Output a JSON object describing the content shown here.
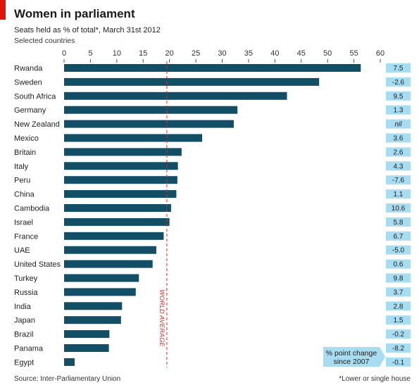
{
  "colors": {
    "brand": "#e3120b",
    "bar": "#124e66",
    "change_box": "#a8dcf0",
    "reference_line": "#d62c2c",
    "tick_mark": "#555555"
  },
  "source": "Source: Inter-Parliamentary Union",
  "footnote": "*Lower or single house",
  "chart_data": {
    "type": "bar",
    "orientation": "horizontal",
    "title": "Women in parliament",
    "subtitle": "Seats held as % of total*, March 31st 2012",
    "note": "Selected countries",
    "xlim": [
      0,
      60
    ],
    "xticks": [
      0,
      5,
      10,
      15,
      20,
      25,
      30,
      35,
      40,
      45,
      50,
      55,
      60
    ],
    "xaxis_position": "top",
    "grid": false,
    "categories": [
      "Rwanda",
      "Sweden",
      "South Africa",
      "Germany",
      "New Zealand",
      "Mexico",
      "Britain",
      "Italy",
      "Peru",
      "China",
      "Cambodia",
      "Israel",
      "France",
      "UAE",
      "United States",
      "Turkey",
      "Russia",
      "India",
      "Japan",
      "Brazil",
      "Panama",
      "Egypt"
    ],
    "values": [
      56.3,
      48.4,
      42.3,
      32.9,
      32.2,
      26.2,
      22.3,
      21.6,
      21.5,
      21.3,
      20.3,
      20.0,
      18.9,
      17.5,
      16.8,
      14.2,
      13.6,
      11.0,
      10.8,
      8.6,
      8.5,
      2.0
    ],
    "reference_line": {
      "label": "WORLD AVERAGE",
      "value": 19.5
    },
    "change_series": {
      "label_lines": [
        "% point change",
        "since 2007"
      ],
      "values": [
        "7.5",
        "-2.6",
        "9.5",
        "1.3",
        "nil",
        "3.6",
        "2.6",
        "4.3",
        "-7.6",
        "1.1",
        "10.6",
        "5.8",
        "6.7",
        "-5.0",
        "0.6",
        "9.8",
        "3.7",
        "2.8",
        "1.5",
        "-0.2",
        "-8.2",
        "-0.1"
      ]
    }
  }
}
